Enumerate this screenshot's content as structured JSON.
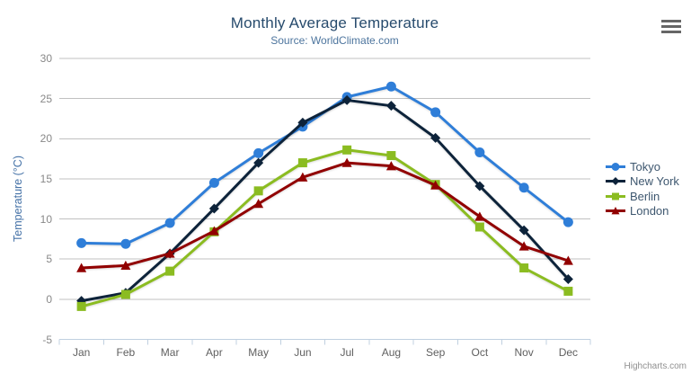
{
  "header": {
    "title": "Monthly Average Temperature",
    "subtitle": "Source: WorldClimate.com"
  },
  "toolbar": {
    "export_menu_icon": "hamburger-icon"
  },
  "credits": {
    "label": "Highcharts.com"
  },
  "axes": {
    "y_title": "Temperature (°C)"
  },
  "chart_data": {
    "type": "line",
    "title": "Monthly Average Temperature",
    "subtitle": "Source: WorldClimate.com",
    "categories": [
      "Jan",
      "Feb",
      "Mar",
      "Apr",
      "May",
      "Jun",
      "Jul",
      "Aug",
      "Sep",
      "Oct",
      "Nov",
      "Dec"
    ],
    "xlabel": "",
    "ylabel": "Temperature (°C)",
    "ylim": [
      -5,
      30
    ],
    "yticks": [
      -5,
      0,
      5,
      10,
      15,
      20,
      25,
      30
    ],
    "grid": true,
    "legend_position": "right",
    "series": [
      {
        "name": "Tokyo",
        "marker": "circle",
        "color": "#2f7ed8",
        "values": [
          7.0,
          6.9,
          9.5,
          14.5,
          18.2,
          21.5,
          25.2,
          26.5,
          23.3,
          18.3,
          13.9,
          9.6
        ]
      },
      {
        "name": "New York",
        "marker": "diamond",
        "color": "#0d233a",
        "values": [
          -0.2,
          0.8,
          5.7,
          11.3,
          17.0,
          22.0,
          24.8,
          24.1,
          20.1,
          14.1,
          8.6,
          2.5
        ]
      },
      {
        "name": "Berlin",
        "marker": "square",
        "color": "#8bbc21",
        "values": [
          -0.9,
          0.6,
          3.5,
          8.4,
          13.5,
          17.0,
          18.6,
          17.9,
          14.3,
          9.0,
          3.9,
          1.0
        ]
      },
      {
        "name": "London",
        "marker": "triangle",
        "color": "#910000",
        "values": [
          3.9,
          4.2,
          5.7,
          8.5,
          11.9,
          15.2,
          17.0,
          16.6,
          14.2,
          10.3,
          6.6,
          4.8
        ]
      }
    ],
    "colors": {
      "grid_line": "#c0c0c0",
      "axis_line": "#c0d0e0",
      "y_tick_label": "#888888",
      "x_tick_label": "#606060",
      "title": "#274b6d",
      "subtitle": "#4d759e",
      "y_axis_title": "#4572a7",
      "legend_text": "#3e576f",
      "credit": "#909090"
    }
  }
}
